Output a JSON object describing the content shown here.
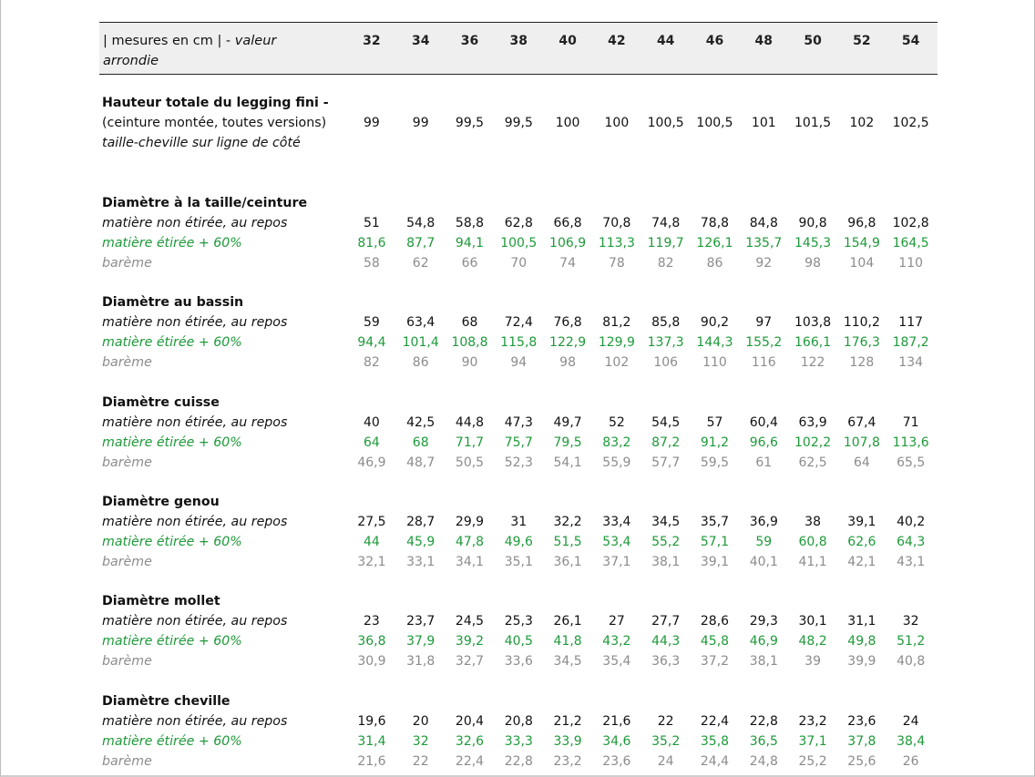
{
  "header": {
    "label_part1": "| mesures en cm | - ",
    "label_part2": "valeur arrondie",
    "sizes": [
      "32",
      "34",
      "36",
      "38",
      "40",
      "42",
      "44",
      "46",
      "48",
      "50",
      "52",
      "54"
    ]
  },
  "hauteur": {
    "title": "Hauteur totale du legging fini  -",
    "subtitle": "(ceinture montée, toutes versions)",
    "note": "taille-cheville sur ligne de côté",
    "values": [
      "99",
      "99",
      "99,5",
      "99,5",
      "100",
      "100",
      "100,5",
      "100,5",
      "101",
      "101,5",
      "102",
      "102,5"
    ]
  },
  "labels": {
    "repos": "matière non étirée, au repos",
    "etiree": "matière étirée + 60%",
    "bareme": "barème"
  },
  "sections": [
    {
      "title": "Diamètre à la taille/ceinture",
      "repos": [
        "51",
        "54,8",
        "58,8",
        "62,8",
        "66,8",
        "70,8",
        "74,8",
        "78,8",
        "84,8",
        "90,8",
        "96,8",
        "102,8"
      ],
      "etiree": [
        "81,6",
        "87,7",
        "94,1",
        "100,5",
        "106,9",
        "113,3",
        "119,7",
        "126,1",
        "135,7",
        "145,3",
        "154,9",
        "164,5"
      ],
      "bareme": [
        "58",
        "62",
        "66",
        "70",
        "74",
        "78",
        "82",
        "86",
        "92",
        "98",
        "104",
        "110"
      ]
    },
    {
      "title": "Diamètre au bassin",
      "repos": [
        "59",
        "63,4",
        "68",
        "72,4",
        "76,8",
        "81,2",
        "85,8",
        "90,2",
        "97",
        "103,8",
        "110,2",
        "117"
      ],
      "etiree": [
        "94,4",
        "101,4",
        "108,8",
        "115,8",
        "122,9",
        "129,9",
        "137,3",
        "144,3",
        "155,2",
        "166,1",
        "176,3",
        "187,2"
      ],
      "bareme": [
        "82",
        "86",
        "90",
        "94",
        "98",
        "102",
        "106",
        "110",
        "116",
        "122",
        "128",
        "134"
      ]
    },
    {
      "title": "Diamètre cuisse",
      "repos": [
        "40",
        "42,5",
        "44,8",
        "47,3",
        "49,7",
        "52",
        "54,5",
        "57",
        "60,4",
        "63,9",
        "67,4",
        "71"
      ],
      "etiree": [
        "64",
        "68",
        "71,7",
        "75,7",
        "79,5",
        "83,2",
        "87,2",
        "91,2",
        "96,6",
        "102,2",
        "107,8",
        "113,6"
      ],
      "bareme": [
        "46,9",
        "48,7",
        "50,5",
        "52,3",
        "54,1",
        "55,9",
        "57,7",
        "59,5",
        "61",
        "62,5",
        "64",
        "65,5"
      ]
    },
    {
      "title": "Diamètre genou",
      "repos": [
        "27,5",
        "28,7",
        "29,9",
        "31",
        "32,2",
        "33,4",
        "34,5",
        "35,7",
        "36,9",
        "38",
        "39,1",
        "40,2"
      ],
      "etiree": [
        "44",
        "45,9",
        "47,8",
        "49,6",
        "51,5",
        "53,4",
        "55,2",
        "57,1",
        "59",
        "60,8",
        "62,6",
        "64,3"
      ],
      "bareme": [
        "32,1",
        "33,1",
        "34,1",
        "35,1",
        "36,1",
        "37,1",
        "38,1",
        "39,1",
        "40,1",
        "41,1",
        "42,1",
        "43,1"
      ]
    },
    {
      "title": "Diamètre mollet",
      "repos": [
        "23",
        "23,7",
        "24,5",
        "25,3",
        "26,1",
        "27",
        "27,7",
        "28,6",
        "29,3",
        "30,1",
        "31,1",
        "32"
      ],
      "etiree": [
        "36,8",
        "37,9",
        "39,2",
        "40,5",
        "41,8",
        "43,2",
        "44,3",
        "45,8",
        "46,9",
        "48,2",
        "49,8",
        "51,2"
      ],
      "bareme": [
        "30,9",
        "31,8",
        "32,7",
        "33,6",
        "34,5",
        "35,4",
        "36,3",
        "37,2",
        "38,1",
        "39",
        "39,9",
        "40,8"
      ]
    },
    {
      "title": "Diamètre cheville",
      "repos": [
        "19,6",
        "20",
        "20,4",
        "20,8",
        "21,2",
        "21,6",
        "22",
        "22,4",
        "22,8",
        "23,2",
        "23,6",
        "24"
      ],
      "etiree": [
        "31,4",
        "32",
        "32,6",
        "33,3",
        "33,9",
        "34,6",
        "35,2",
        "35,8",
        "36,5",
        "37,1",
        "37,8",
        "38,4"
      ],
      "bareme": [
        "21,6",
        "22",
        "22,4",
        "22,8",
        "23,2",
        "23,6",
        "24",
        "24,4",
        "24,8",
        "25,2",
        "25,6",
        "26"
      ]
    }
  ]
}
